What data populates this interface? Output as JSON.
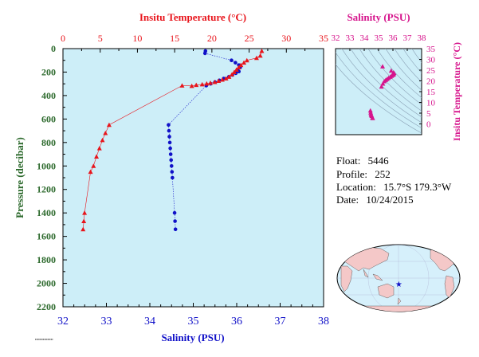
{
  "colors": {
    "temperature": "#e8141b",
    "salinity": "#1010c8",
    "ts_accent": "#d6148c",
    "pressure_axis": "#2d6a2d",
    "plot_bg": "#cdeef8",
    "map_land": "#f4c8c8",
    "map_ocean": "#d6f0fb"
  },
  "float_info": {
    "float_label": "Float:",
    "float_value": "5446",
    "profile_label": "Profile:",
    "profile_value": "252",
    "location_label": "Location:",
    "location_value": "15.7°S  179.3°W",
    "date_label": "Date:",
    "date_value": "10/24/2015"
  },
  "map": {
    "marker_icon": "star-icon",
    "marker_lon": -179.3,
    "marker_lat": -15.7
  },
  "chart_data": [
    {
      "type": "line",
      "title": "",
      "ylabel": "Pressure (decibar)",
      "xlabel_top": "Insitu Temperature (°C)",
      "xlabel_bottom": "Salinity (PSU)",
      "ylim": [
        2200,
        0
      ],
      "y_ticks": [
        "0",
        "200",
        "400",
        "600",
        "800",
        "1000",
        "1200",
        "1400",
        "1600",
        "1800",
        "2000",
        "2200"
      ],
      "x_top_range": [
        0,
        35
      ],
      "x_top_ticks": [
        "0",
        "5",
        "10",
        "15",
        "20",
        "25",
        "30",
        "35"
      ],
      "x_bottom_range": [
        32,
        38
      ],
      "x_bottom_ticks": [
        "32",
        "33",
        "34",
        "35",
        "36",
        "37",
        "38"
      ],
      "series": [
        {
          "axis": "top",
          "marker": "triangle",
          "points": [
            {
              "x": 26.7,
              "y": 20
            },
            {
              "x": 26.5,
              "y": 60
            },
            {
              "x": 26.0,
              "y": 80
            },
            {
              "x": 24.7,
              "y": 100
            },
            {
              "x": 24.3,
              "y": 120
            },
            {
              "x": 23.9,
              "y": 140
            },
            {
              "x": 23.6,
              "y": 160
            },
            {
              "x": 23.3,
              "y": 180
            },
            {
              "x": 23.0,
              "y": 200
            },
            {
              "x": 22.7,
              "y": 220
            },
            {
              "x": 22.3,
              "y": 240
            },
            {
              "x": 21.9,
              "y": 255
            },
            {
              "x": 21.4,
              "y": 265
            },
            {
              "x": 20.9,
              "y": 275
            },
            {
              "x": 20.4,
              "y": 285
            },
            {
              "x": 19.8,
              "y": 292
            },
            {
              "x": 19.3,
              "y": 298
            },
            {
              "x": 18.7,
              "y": 305
            },
            {
              "x": 17.9,
              "y": 310
            },
            {
              "x": 17.3,
              "y": 318
            },
            {
              "x": 16.0,
              "y": 315
            },
            {
              "x": 6.2,
              "y": 650
            },
            {
              "x": 5.7,
              "y": 720
            },
            {
              "x": 5.3,
              "y": 780
            },
            {
              "x": 4.9,
              "y": 850
            },
            {
              "x": 4.5,
              "y": 920
            },
            {
              "x": 4.1,
              "y": 1000
            },
            {
              "x": 3.7,
              "y": 1050
            },
            {
              "x": 2.9,
              "y": 1400
            },
            {
              "x": 2.8,
              "y": 1470
            },
            {
              "x": 2.7,
              "y": 1540
            }
          ]
        },
        {
          "axis": "bottom",
          "marker": "circle",
          "points": [
            {
              "x": 35.28,
              "y": 20
            },
            {
              "x": 35.27,
              "y": 40
            },
            {
              "x": 35.88,
              "y": 100
            },
            {
              "x": 35.97,
              "y": 120
            },
            {
              "x": 36.05,
              "y": 140
            },
            {
              "x": 36.08,
              "y": 160
            },
            {
              "x": 36.02,
              "y": 180
            },
            {
              "x": 36.05,
              "y": 195
            },
            {
              "x": 35.98,
              "y": 210
            },
            {
              "x": 35.9,
              "y": 225
            },
            {
              "x": 35.82,
              "y": 240
            },
            {
              "x": 35.7,
              "y": 255
            },
            {
              "x": 35.6,
              "y": 270
            },
            {
              "x": 35.5,
              "y": 285
            },
            {
              "x": 35.4,
              "y": 300
            },
            {
              "x": 35.3,
              "y": 315
            },
            {
              "x": 34.43,
              "y": 650
            },
            {
              "x": 34.44,
              "y": 700
            },
            {
              "x": 34.45,
              "y": 750
            },
            {
              "x": 34.46,
              "y": 800
            },
            {
              "x": 34.47,
              "y": 850
            },
            {
              "x": 34.48,
              "y": 900
            },
            {
              "x": 34.49,
              "y": 950
            },
            {
              "x": 34.5,
              "y": 1000
            },
            {
              "x": 34.51,
              "y": 1050
            },
            {
              "x": 34.52,
              "y": 1100
            },
            {
              "x": 34.57,
              "y": 1400
            },
            {
              "x": 34.58,
              "y": 1470
            },
            {
              "x": 34.59,
              "y": 1540
            }
          ]
        }
      ]
    },
    {
      "type": "scatter",
      "title": "",
      "xlabel": "Salinity (PSU)",
      "ylabel": "Insitu Temperature (°C)",
      "xlim": [
        32,
        38
      ],
      "ylim": [
        -5,
        35
      ],
      "x_ticks": [
        "32",
        "33",
        "34",
        "35",
        "36",
        "37",
        "38"
      ],
      "y_ticks": [
        "0",
        "5",
        "10",
        "15",
        "20",
        "25",
        "30",
        "35"
      ],
      "points": [
        {
          "x": 35.28,
          "y": 26.7
        },
        {
          "x": 35.88,
          "y": 24.7
        },
        {
          "x": 36.05,
          "y": 23.9
        },
        {
          "x": 36.08,
          "y": 23.6
        },
        {
          "x": 36.02,
          "y": 23.3
        },
        {
          "x": 36.05,
          "y": 23.0
        },
        {
          "x": 35.98,
          "y": 22.7
        },
        {
          "x": 35.9,
          "y": 22.3
        },
        {
          "x": 35.82,
          "y": 21.9
        },
        {
          "x": 35.7,
          "y": 21.4
        },
        {
          "x": 35.6,
          "y": 20.9
        },
        {
          "x": 35.5,
          "y": 20.4
        },
        {
          "x": 35.4,
          "y": 19.8
        },
        {
          "x": 35.3,
          "y": 18.7
        },
        {
          "x": 35.2,
          "y": 17.3
        },
        {
          "x": 34.43,
          "y": 6.2
        },
        {
          "x": 34.45,
          "y": 5.3
        },
        {
          "x": 34.47,
          "y": 4.5
        },
        {
          "x": 34.5,
          "y": 4.1
        },
        {
          "x": 34.52,
          "y": 3.7
        },
        {
          "x": 34.57,
          "y": 2.9
        },
        {
          "x": 34.59,
          "y": 2.7
        }
      ]
    }
  ]
}
